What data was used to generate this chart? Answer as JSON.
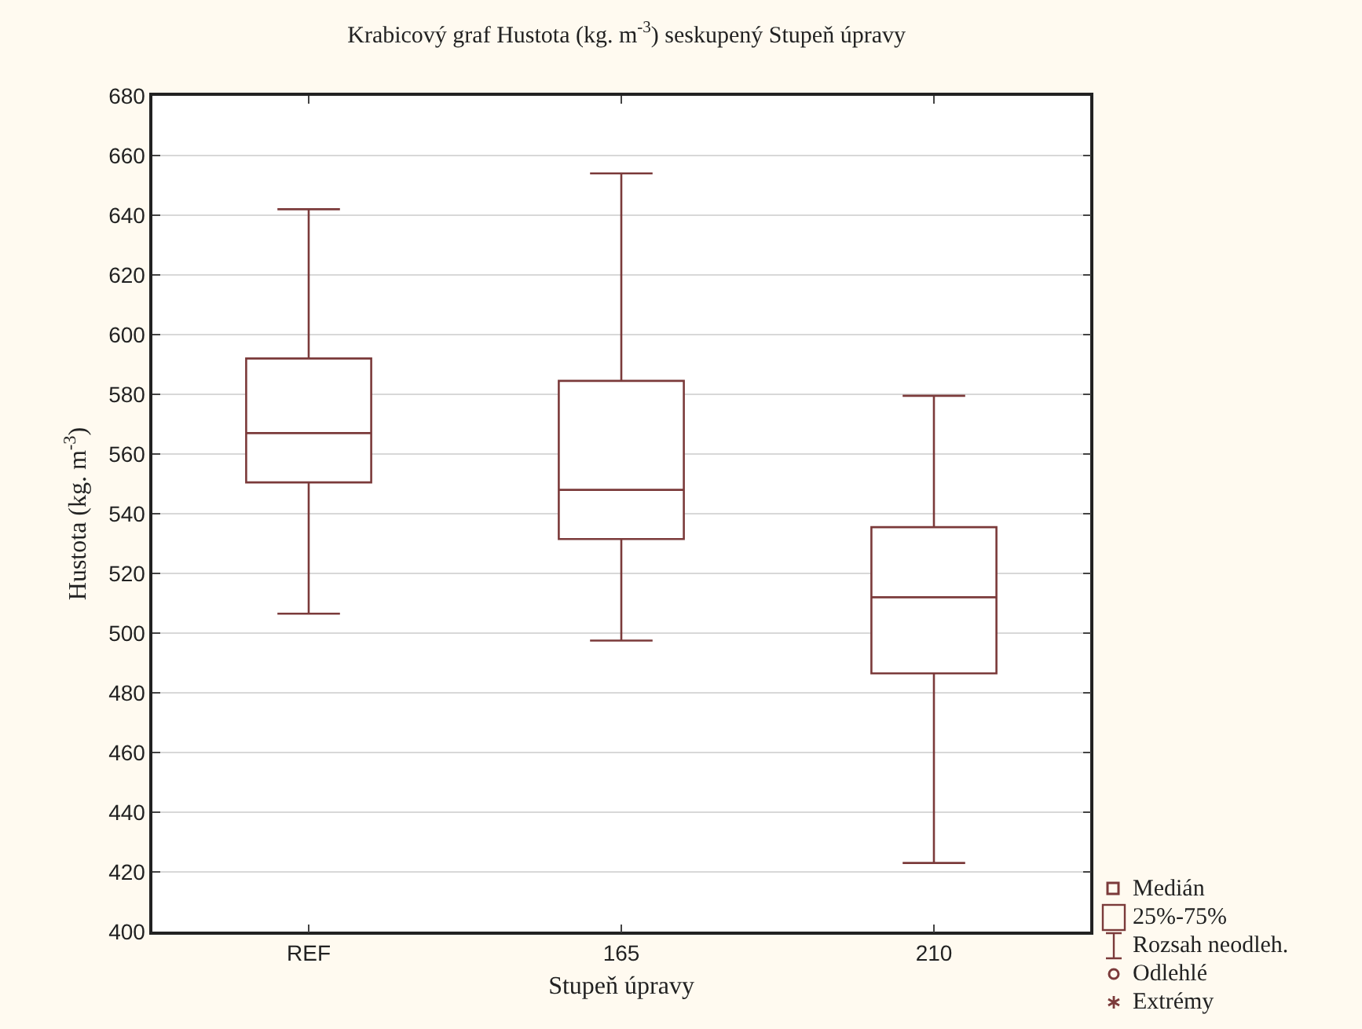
{
  "chart_data": {
    "type": "box",
    "title": "Krabicový graf Hustota (kg. m$^{-3}$) seskupený Stupeň úpravy",
    "xlabel": "Stupeň úpravy",
    "ylabel": "Hustota (kg. m$^{-3}$)",
    "categories": [
      "REF",
      "165",
      "210"
    ],
    "boxes": [
      {
        "low": 506.5,
        "q1": 550.5,
        "median": 567,
        "q3": 592,
        "high": 642
      },
      {
        "low": 497.5,
        "q1": 531.5,
        "median": 548,
        "q3": 584.5,
        "high": 654
      },
      {
        "low": 423,
        "q1": 486.5,
        "median": 512,
        "q3": 535.5,
        "high": 579.5
      }
    ],
    "color": "#7b3a3a",
    "ylim": [
      400,
      680
    ],
    "yticks": [
      400,
      420,
      440,
      460,
      480,
      500,
      520,
      540,
      560,
      580,
      600,
      620,
      640,
      660,
      680
    ],
    "grid": "y",
    "annotations": [
      "Medián",
      "25%-75%",
      "Rozsah neodleh.",
      "Odlehlé",
      "Extrémy"
    ]
  }
}
